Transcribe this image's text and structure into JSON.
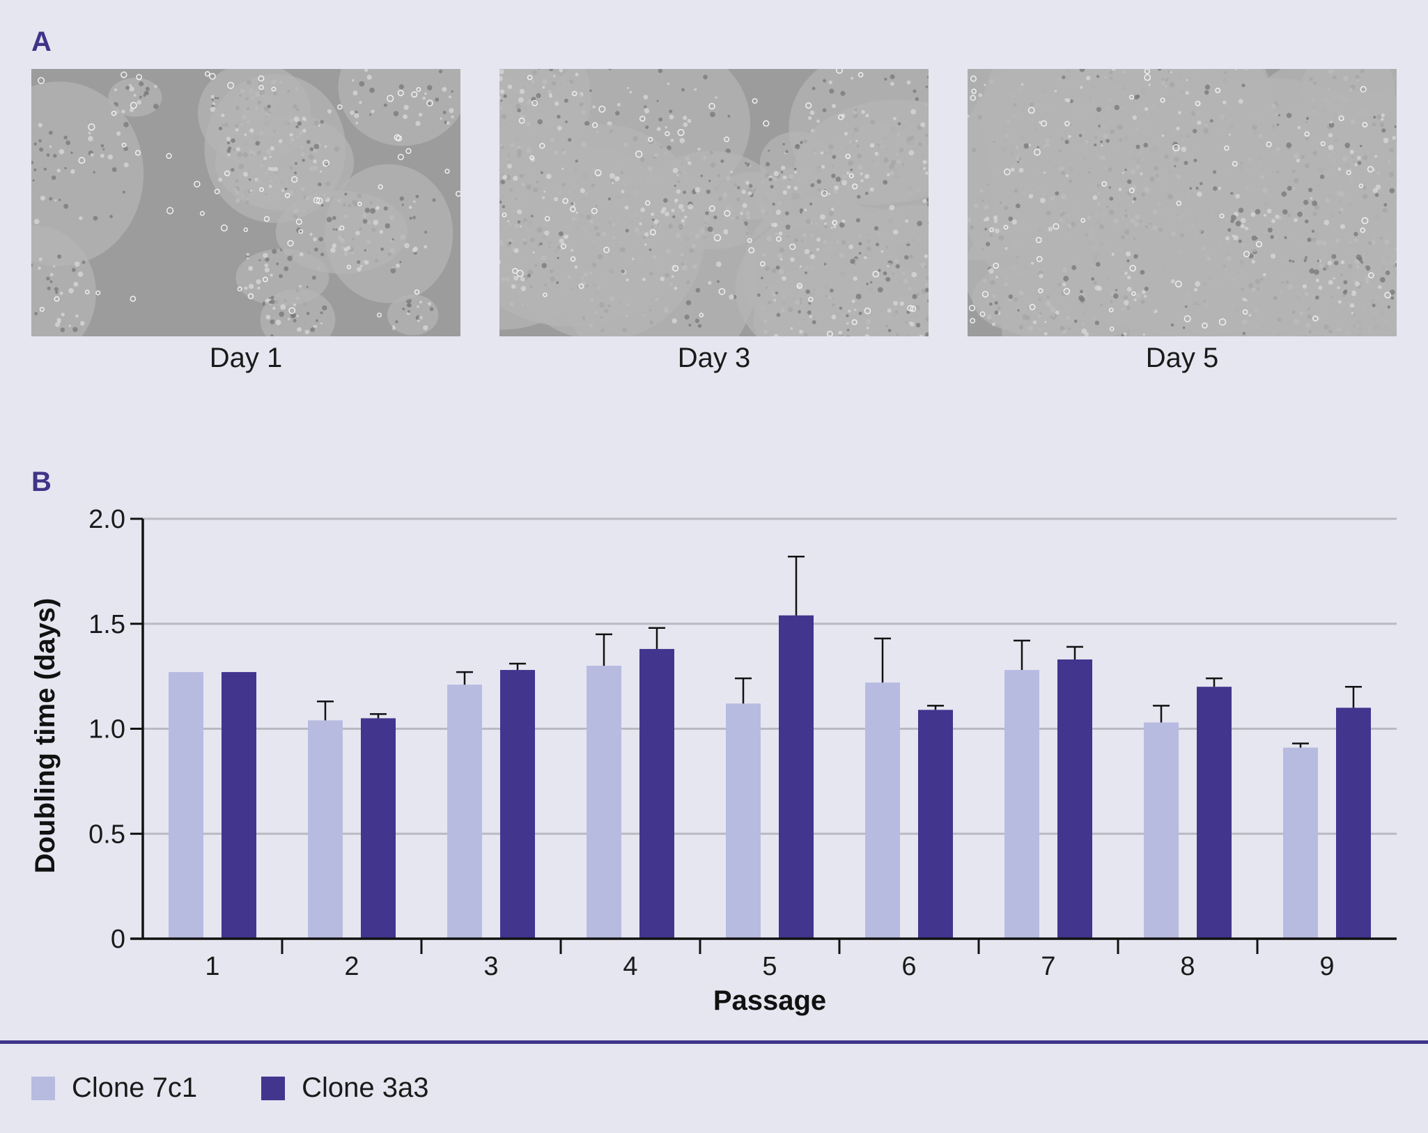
{
  "panel_a": {
    "letter": "A",
    "images": [
      {
        "caption": "Day 1",
        "density": 0.25
      },
      {
        "caption": "Day 3",
        "density": 0.6
      },
      {
        "caption": "Day 5",
        "density": 0.92
      }
    ]
  },
  "panel_b": {
    "letter": "B"
  },
  "chart_data": {
    "type": "bar",
    "title": "",
    "xlabel": "Passage",
    "ylabel": "Doubling time (days)",
    "categories": [
      "1",
      "2",
      "3",
      "4",
      "5",
      "6",
      "7",
      "8",
      "9"
    ],
    "ylim": [
      0,
      2.0
    ],
    "yticks": [
      "0",
      "0.5",
      "1.0",
      "1.5",
      "2.0"
    ],
    "grid": true,
    "legend_position": "bottom",
    "series": [
      {
        "name": "Clone 7c1",
        "color": "#b8bbe0",
        "values": [
          1.27,
          1.04,
          1.21,
          1.3,
          1.12,
          1.22,
          1.28,
          1.03,
          0.91
        ],
        "errors": [
          0,
          0.09,
          0.06,
          0.15,
          0.12,
          0.21,
          0.14,
          0.08,
          0.02
        ]
      },
      {
        "name": "Clone 3a3",
        "color": "#41358e",
        "values": [
          1.27,
          1.05,
          1.28,
          1.38,
          1.54,
          1.09,
          1.33,
          1.2,
          1.1
        ],
        "errors": [
          0,
          0.02,
          0.03,
          0.1,
          0.28,
          0.02,
          0.06,
          0.04,
          0.1
        ]
      }
    ]
  }
}
